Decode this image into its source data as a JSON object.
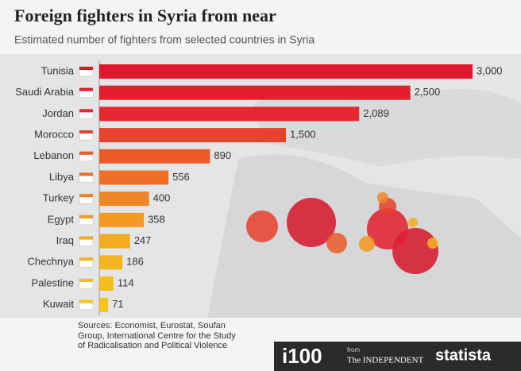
{
  "chart_data": {
    "type": "bar",
    "orientation": "horizontal",
    "title": "Foreign fighters in Syria from near",
    "subtitle": "Estimated number of fighters from selected countries in Syria",
    "categories": [
      "Tunisia",
      "Saudi Arabia",
      "Jordan",
      "Morocco",
      "Lebanon",
      "Libya",
      "Turkey",
      "Egypt",
      "Iraq",
      "Chechnya",
      "Palestine",
      "Kuwait"
    ],
    "values": [
      3000,
      2500,
      2089,
      1500,
      890,
      556,
      400,
      358,
      247,
      186,
      114,
      71
    ],
    "value_labels": [
      "3,000",
      "2,500",
      "2,089",
      "1,500",
      "890",
      "556",
      "400",
      "358",
      "247",
      "186",
      "114",
      "71"
    ],
    "colors": [
      "#e3172b",
      "#e31f2e",
      "#e5282f",
      "#e8412c",
      "#ec5a2a",
      "#ef6f27",
      "#f08526",
      "#f29a22",
      "#f3ab20",
      "#f4b51e",
      "#f5be1c",
      "#f5c31b"
    ],
    "source": "Sources: Economist, Eurostat, Soufan Group, International Centre for the Study of Radicalisation and Political Violence",
    "footer": {
      "brand1": "i100",
      "from": "from",
      "publisher": "The INDEPENDENT",
      "brand2": "statista"
    }
  }
}
